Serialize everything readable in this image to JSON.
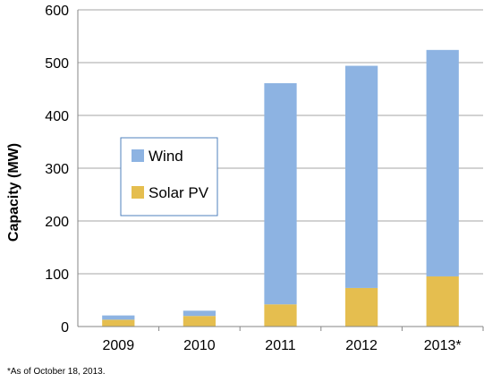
{
  "chart_data": {
    "type": "bar",
    "stacked": true,
    "categories": [
      "2009",
      "2010",
      "2011",
      "2012",
      "2013*"
    ],
    "series": [
      {
        "name": "Solar PV",
        "color": "#E5BE4F",
        "values": [
          13,
          20,
          42,
          73,
          95
        ]
      },
      {
        "name": "Wind",
        "color": "#8DB3E2",
        "values": [
          8,
          10,
          419,
          421,
          429
        ]
      }
    ],
    "legend_order": [
      "Wind",
      "Solar PV"
    ],
    "legend_placement": "center-left",
    "ylabel": "Capacity (MW)",
    "xlabel": "",
    "ylim": [
      0,
      600
    ],
    "yticks": [
      0,
      100,
      200,
      300,
      400,
      500,
      600
    ],
    "grid": true,
    "footnote": "*As of October 18, 2013."
  }
}
